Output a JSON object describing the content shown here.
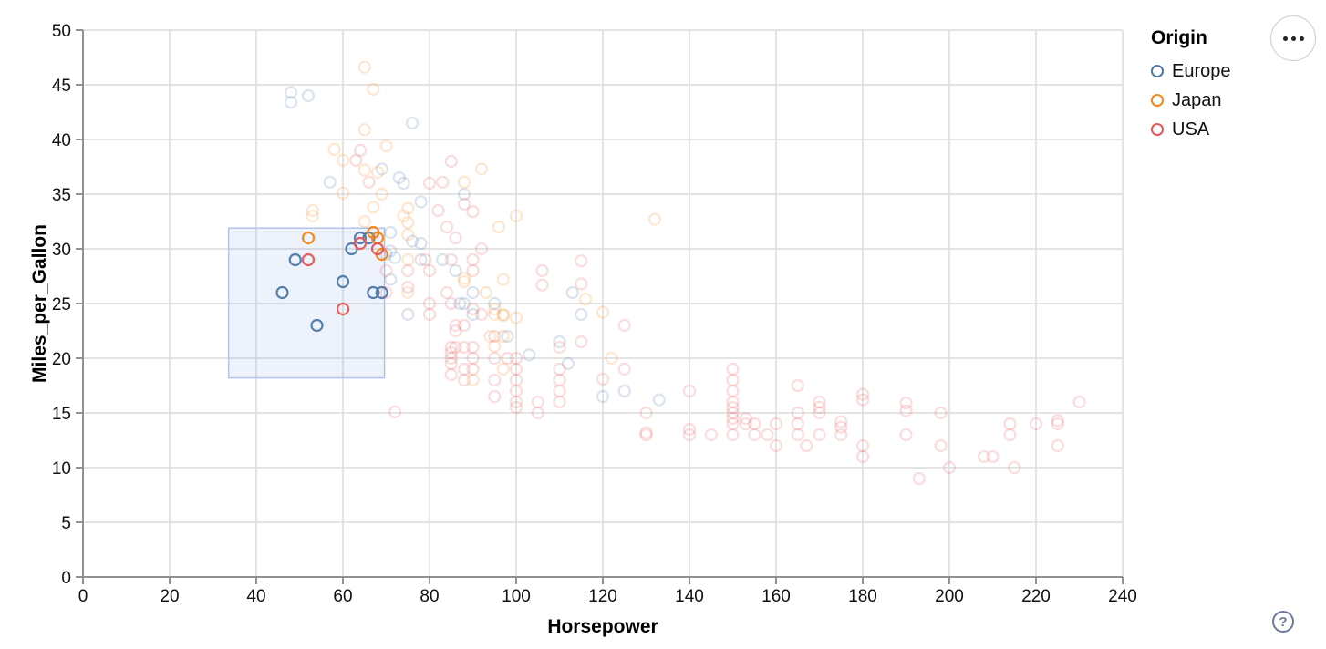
{
  "chart_data": {
    "type": "scatter",
    "title": "",
    "xlabel": "Horsepower",
    "ylabel": "Miles_per_Gallon",
    "xlim": [
      0,
      240
    ],
    "ylim": [
      0,
      50
    ],
    "xticks": [
      0,
      20,
      40,
      60,
      80,
      100,
      120,
      140,
      160,
      180,
      200,
      220,
      240
    ],
    "yticks": [
      0,
      5,
      10,
      15,
      20,
      25,
      30,
      35,
      40,
      45,
      50
    ],
    "grid": true,
    "point_style": {
      "shape": "open-circle",
      "radius": 6,
      "stroke_width": 2.2,
      "selected_opacity": 0.95,
      "unselected_opacity": 0.2
    },
    "brush_selection": {
      "hp_range": [
        33.6,
        69.6
      ],
      "mpg_range": [
        18.2,
        31.9
      ],
      "fill": "#5b8dd9",
      "fill_opacity": 0.1,
      "stroke": "#b0c4ec"
    },
    "legend": {
      "title": "Origin",
      "position": "top-right",
      "entries": [
        {
          "label": "Europe",
          "color": "#4c78a8"
        },
        {
          "label": "Japan",
          "color": "#f58518"
        },
        {
          "label": "USA",
          "color": "#e45756"
        }
      ]
    },
    "series": [
      {
        "name": "Europe",
        "color": "#4c78a8",
        "points": [
          [
            48,
            44.3
          ],
          [
            52,
            44
          ],
          [
            48,
            43.4
          ],
          [
            76,
            41.5
          ],
          [
            69,
            37.3
          ],
          [
            74,
            36
          ],
          [
            57,
            36.1
          ],
          [
            73,
            36.5
          ],
          [
            88,
            35
          ],
          [
            78,
            34.3
          ],
          [
            71,
            31.5
          ],
          [
            71,
            29.8
          ],
          [
            72,
            29.2
          ],
          [
            78,
            30.5
          ],
          [
            76,
            30.7
          ],
          [
            70,
            29.5
          ],
          [
            78,
            29
          ],
          [
            83,
            29
          ],
          [
            86,
            28
          ],
          [
            90,
            26
          ],
          [
            88,
            25
          ],
          [
            87,
            25
          ],
          [
            95,
            25
          ],
          [
            90,
            24
          ],
          [
            75,
            24
          ],
          [
            113,
            26
          ],
          [
            110,
            21.5
          ],
          [
            115,
            24
          ],
          [
            98,
            22
          ],
          [
            103,
            20.3
          ],
          [
            112,
            19.5
          ],
          [
            125,
            17
          ],
          [
            133,
            16.2
          ],
          [
            120,
            16.5
          ],
          [
            71,
            27.2
          ],
          [
            49,
            29
          ],
          [
            46,
            26
          ],
          [
            60,
            27
          ],
          [
            54,
            23
          ],
          [
            62,
            30
          ],
          [
            64,
            31
          ],
          [
            66,
            31
          ],
          [
            67,
            26
          ],
          [
            69,
            26
          ]
        ]
      },
      {
        "name": "Japan",
        "color": "#f58518",
        "points": [
          [
            65,
            46.6
          ],
          [
            67,
            44.6
          ],
          [
            65,
            40.9
          ],
          [
            70,
            39.4
          ],
          [
            58,
            39.1
          ],
          [
            60,
            38.1
          ],
          [
            65,
            37.2
          ],
          [
            68,
            37
          ],
          [
            92,
            37.3
          ],
          [
            88,
            36.1
          ],
          [
            60,
            35.1
          ],
          [
            69,
            35
          ],
          [
            75,
            33.7
          ],
          [
            67,
            33.8
          ],
          [
            53,
            33.5
          ],
          [
            53,
            33
          ],
          [
            74,
            33
          ],
          [
            100,
            33
          ],
          [
            132,
            32.7
          ],
          [
            75,
            32.4
          ],
          [
            65,
            32.5
          ],
          [
            96,
            32
          ],
          [
            75,
            31.3
          ],
          [
            88,
            27
          ],
          [
            88,
            27.3
          ],
          [
            97,
            27.2
          ],
          [
            93,
            26
          ],
          [
            75,
            26
          ],
          [
            75,
            29
          ],
          [
            116,
            25.4
          ],
          [
            95,
            24
          ],
          [
            95,
            24.5
          ],
          [
            97,
            24
          ],
          [
            120,
            24.2
          ],
          [
            97,
            23.9
          ],
          [
            100,
            23.7
          ],
          [
            94,
            22
          ],
          [
            97,
            22
          ],
          [
            95,
            21.1
          ],
          [
            122,
            20
          ],
          [
            97,
            19
          ],
          [
            90,
            18
          ],
          [
            52,
            31
          ],
          [
            67,
            31.5
          ],
          [
            68,
            31
          ],
          [
            69,
            29.5
          ]
        ]
      },
      {
        "name": "USA",
        "color": "#e45756",
        "points": [
          [
            64,
            39
          ],
          [
            63,
            38.1
          ],
          [
            85,
            38
          ],
          [
            66,
            36.1
          ],
          [
            80,
            36
          ],
          [
            83,
            36.1
          ],
          [
            88,
            34.1
          ],
          [
            82,
            33.5
          ],
          [
            90,
            33.4
          ],
          [
            84,
            32
          ],
          [
            86,
            31
          ],
          [
            92,
            30
          ],
          [
            85,
            29
          ],
          [
            79,
            29
          ],
          [
            75,
            28
          ],
          [
            80,
            28
          ],
          [
            90,
            29
          ],
          [
            70,
            28
          ],
          [
            90,
            28
          ],
          [
            70,
            26
          ],
          [
            80,
            25
          ],
          [
            75,
            26.5
          ],
          [
            84,
            26
          ],
          [
            85,
            25
          ],
          [
            92,
            24
          ],
          [
            90,
            24.5
          ],
          [
            88,
            23
          ],
          [
            80,
            24
          ],
          [
            86,
            22.5
          ],
          [
            95,
            22
          ],
          [
            125,
            23
          ],
          [
            106,
            28
          ],
          [
            106,
            26.7
          ],
          [
            115,
            28.9
          ],
          [
            115,
            26.8
          ],
          [
            115,
            21.5
          ],
          [
            85,
            21
          ],
          [
            85,
            20.5
          ],
          [
            85,
            20
          ],
          [
            85,
            19.5
          ],
          [
            85,
            18.5
          ],
          [
            88,
            21
          ],
          [
            88,
            19
          ],
          [
            88,
            18
          ],
          [
            90,
            21
          ],
          [
            90,
            20
          ],
          [
            90,
            19
          ],
          [
            95,
            20
          ],
          [
            95,
            18
          ],
          [
            95,
            16.5
          ],
          [
            98,
            20
          ],
          [
            100,
            20
          ],
          [
            100,
            19
          ],
          [
            100,
            18
          ],
          [
            100,
            17
          ],
          [
            100,
            16
          ],
          [
            100,
            15.5
          ],
          [
            105,
            16
          ],
          [
            105,
            15
          ],
          [
            110,
            21
          ],
          [
            110,
            19
          ],
          [
            110,
            18
          ],
          [
            110,
            17
          ],
          [
            110,
            16
          ],
          [
            120,
            18.1
          ],
          [
            125,
            19
          ],
          [
            130,
            15
          ],
          [
            130,
            13
          ],
          [
            130,
            13.2
          ],
          [
            140,
            17
          ],
          [
            140,
            13
          ],
          [
            140,
            13.5
          ],
          [
            145,
            13
          ],
          [
            150,
            18
          ],
          [
            150,
            17
          ],
          [
            150,
            16
          ],
          [
            150,
            15
          ],
          [
            150,
            15.5
          ],
          [
            150,
            14
          ],
          [
            150,
            14.5
          ],
          [
            150,
            13
          ],
          [
            150,
            19
          ],
          [
            153,
            14
          ],
          [
            153,
            14.5
          ],
          [
            155,
            13
          ],
          [
            155,
            14
          ],
          [
            158,
            13
          ],
          [
            160,
            14
          ],
          [
            160,
            12
          ],
          [
            165,
            17.5
          ],
          [
            165,
            15
          ],
          [
            165,
            14
          ],
          [
            165,
            13
          ],
          [
            167,
            12
          ],
          [
            170,
            16
          ],
          [
            170,
            15.5
          ],
          [
            170,
            15
          ],
          [
            170,
            13
          ],
          [
            175,
            14.2
          ],
          [
            175,
            13.7
          ],
          [
            175,
            13
          ],
          [
            180,
            16.7
          ],
          [
            180,
            16.2
          ],
          [
            180,
            12
          ],
          [
            180,
            11
          ],
          [
            190,
            15.9
          ],
          [
            190,
            15.2
          ],
          [
            190,
            13
          ],
          [
            193,
            9
          ],
          [
            198,
            15
          ],
          [
            198,
            12
          ],
          [
            200,
            10
          ],
          [
            208,
            11
          ],
          [
            210,
            11
          ],
          [
            214,
            14
          ],
          [
            214,
            13
          ],
          [
            215,
            10
          ],
          [
            220,
            14
          ],
          [
            225,
            14
          ],
          [
            225,
            14.3
          ],
          [
            225,
            12
          ],
          [
            230,
            16
          ],
          [
            72,
            15.1
          ],
          [
            86,
            21
          ],
          [
            86,
            23
          ],
          [
            52,
            29
          ],
          [
            60,
            24.5
          ],
          [
            64,
            30.5
          ],
          [
            68,
            30
          ]
        ]
      }
    ],
    "axis_colors": {
      "grid": "#dcdcdc",
      "domain": "#919191",
      "tick": "#919191",
      "label": "#111111"
    }
  },
  "controls": {
    "menu_icon": "ellipsis-menu-icon",
    "help_label": "?"
  }
}
